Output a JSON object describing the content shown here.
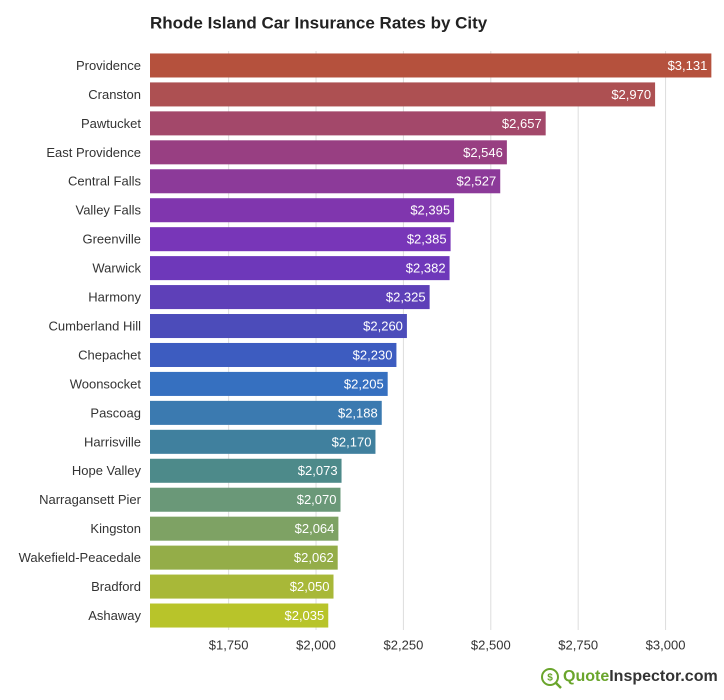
{
  "chart_data": {
    "type": "bar",
    "orientation": "horizontal",
    "title": "Rhode Island Car Insurance Rates by City",
    "categories": [
      "Providence",
      "Cranston",
      "Pawtucket",
      "East Providence",
      "Central Falls",
      "Valley Falls",
      "Greenville",
      "Warwick",
      "Harmony",
      "Cumberland Hill",
      "Chepachet",
      "Woonsocket",
      "Pascoag",
      "Harrisville",
      "Hope Valley",
      "Narragansett Pier",
      "Kingston",
      "Wakefield-Peacedale",
      "Bradford",
      "Ashaway"
    ],
    "values": [
      3131,
      2970,
      2657,
      2546,
      2527,
      2395,
      2385,
      2382,
      2325,
      2260,
      2230,
      2205,
      2188,
      2170,
      2073,
      2070,
      2064,
      2062,
      2050,
      2035
    ],
    "value_labels": [
      "$3,131",
      "$2,970",
      "$2,657",
      "$2,546",
      "$2,527",
      "$2,395",
      "$2,385",
      "$2,382",
      "$2,325",
      "$2,260",
      "$2,230",
      "$2,205",
      "$2,188",
      "$2,170",
      "$2,073",
      "$2,070",
      "$2,064",
      "$2,062",
      "$2,050",
      "$2,035"
    ],
    "colors": [
      "#b5513d",
      "#ad5052",
      "#a3486a",
      "#983f82",
      "#8c3a99",
      "#8036ae",
      "#7836b8",
      "#6e38ba",
      "#5e40b8",
      "#4c4cba",
      "#3d5cc0",
      "#3670c0",
      "#3b7ab0",
      "#40809e",
      "#4d8a8a",
      "#6a9878",
      "#7ea264",
      "#94ad48",
      "#a8b838",
      "#b8c42a"
    ],
    "xlim": [
      1525,
      3150
    ],
    "xticks": [
      {
        "value": 1750,
        "label": "$1,750"
      },
      {
        "value": 2000,
        "label": "$2,000"
      },
      {
        "value": 2250,
        "label": "$2,250"
      },
      {
        "value": 2500,
        "label": "$2,500"
      },
      {
        "value": 2750,
        "label": "$2,750"
      },
      {
        "value": 3000,
        "label": "$3,000"
      }
    ],
    "grid": true
  },
  "brand": {
    "part1": "Quote",
    "part2": "Inspector.com"
  }
}
